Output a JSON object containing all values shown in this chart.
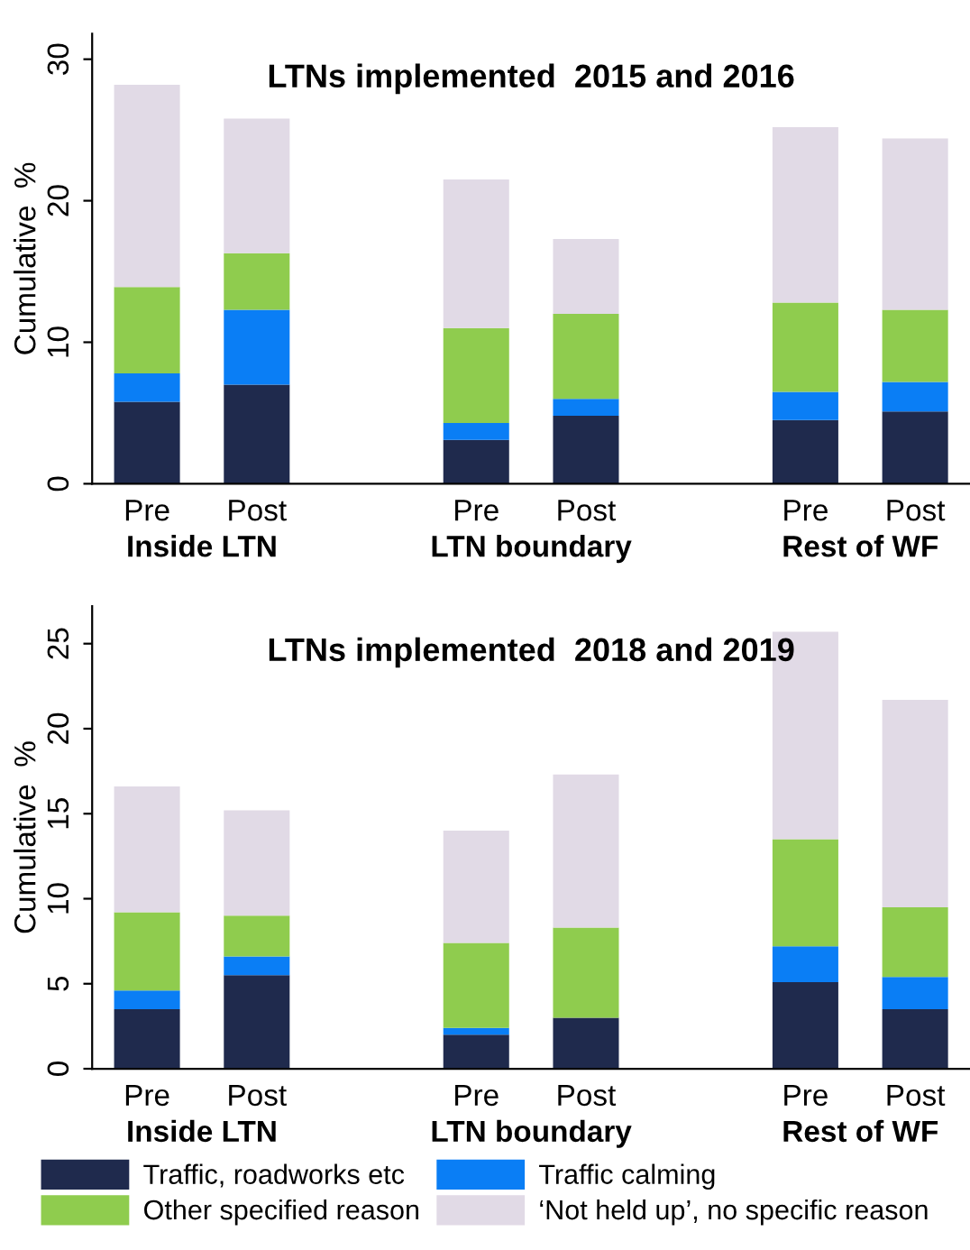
{
  "chart_data": [
    {
      "type": "bar",
      "stacked": true,
      "title": "LTNs implemented  2015 and 2016",
      "ylabel": "Cumulative  %",
      "categories": [
        "Pre",
        "Post",
        null,
        "Pre",
        "Post",
        null,
        "Pre",
        "Post"
      ],
      "annotations": [
        "Inside LTN",
        "LTN boundary",
        "Rest of WF"
      ],
      "ylim": [
        0,
        31.8
      ],
      "yticks": [
        0,
        10,
        20,
        30
      ],
      "grid": false,
      "series": [
        {
          "color": "#1f2a4d",
          "values": [
            5.8,
            7.0,
            null,
            3.1,
            4.8,
            null,
            4.5,
            5.1
          ]
        },
        {
          "color": "#0a7ef5",
          "values": [
            2.0,
            5.3,
            null,
            1.2,
            1.2,
            null,
            2.0,
            2.1
          ]
        },
        {
          "color": "#8fcc4e",
          "values": [
            6.1,
            4.0,
            null,
            6.7,
            6.0,
            null,
            6.3,
            5.1
          ]
        },
        {
          "color": "#e1dae6",
          "values": [
            14.3,
            9.5,
            null,
            10.5,
            5.3,
            null,
            12.4,
            12.1
          ]
        }
      ]
    },
    {
      "type": "bar",
      "stacked": true,
      "title": "LTNs implemented  2018 and 2019",
      "ylabel": "Cumulative  %",
      "categories": [
        "Pre",
        "Post",
        null,
        "Pre",
        "Post",
        null,
        "Pre",
        "Post"
      ],
      "annotations": [
        "Inside LTN",
        "LTN boundary",
        "Rest of WF"
      ],
      "ylim": [
        0,
        27.2
      ],
      "yticks": [
        0,
        5,
        10,
        15,
        20,
        25
      ],
      "grid": false,
      "legend": "bottom",
      "series": [
        {
          "name": "Traffic, roadworks etc",
          "color": "#1f2a4d",
          "values": [
            3.5,
            5.5,
            null,
            2.0,
            3.0,
            null,
            5.1,
            3.5
          ]
        },
        {
          "name": "Traffic calming",
          "color": "#0a7ef5",
          "values": [
            1.1,
            1.1,
            null,
            0.4,
            0,
            null,
            2.1,
            1.9
          ]
        },
        {
          "name": "Other specified reason",
          "color": "#8fcc4e",
          "values": [
            4.6,
            2.4,
            null,
            5.0,
            5.3,
            null,
            6.3,
            4.1
          ]
        },
        {
          "name": "‘Not held up’, no specific reason",
          "color": "#e1dae6",
          "values": [
            7.4,
            6.2,
            null,
            6.6,
            9.0,
            null,
            12.2,
            12.2
          ]
        }
      ]
    }
  ]
}
